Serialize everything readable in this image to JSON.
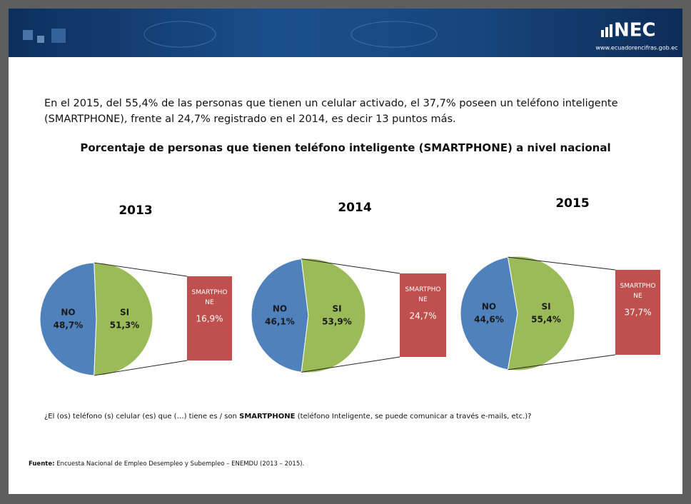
{
  "header": {
    "logo": "NEC",
    "url": "www.ecuadorencifras.gob.ec"
  },
  "intro": "En el 2015, del 55,4% de las personas que tienen un celular activado, el 37,7% poseen un teléfono inteligente (SMARTPHONE), frente al 24,7% registrado en el 2014, es decir 13 puntos más.",
  "heading": "Porcentaje de personas que tienen teléfono inteligente (SMARTPHONE) a nivel nacional",
  "chart_data": [
    {
      "type": "pie",
      "title": "2013",
      "categories": [
        "NO",
        "SI"
      ],
      "values": [
        48.7,
        51.3
      ],
      "value_labels": [
        "48,7%",
        "51,3%"
      ],
      "colors": [
        "#4f81bd",
        "#9bbb59"
      ],
      "breakout": {
        "label": "SMARTPHONE",
        "value": 16.9,
        "value_label": "16,9%",
        "color": "#c0504d"
      }
    },
    {
      "type": "pie",
      "title": "2014",
      "categories": [
        "NO",
        "SI"
      ],
      "values": [
        46.1,
        53.9
      ],
      "value_labels": [
        "46,1%",
        "53,9%"
      ],
      "colors": [
        "#4f81bd",
        "#9bbb59"
      ],
      "breakout": {
        "label": "SMARTPHONE",
        "value": 24.7,
        "value_label": "24,7%",
        "color": "#c0504d"
      }
    },
    {
      "type": "pie",
      "title": "2015",
      "categories": [
        "NO",
        "SI"
      ],
      "values": [
        44.6,
        55.4
      ],
      "value_labels": [
        "44,6%",
        "55,4%"
      ],
      "colors": [
        "#4f81bd",
        "#9bbb59"
      ],
      "breakout": {
        "label": "SMARTPHONE",
        "value": 37.7,
        "value_label": "37,7%",
        "color": "#c0504d"
      }
    }
  ],
  "note": {
    "before": "¿El (os) teléfono (s) celular (es) que (…) tiene es / son",
    "bold": "SMARTPHONE",
    "after": "(teléfono Inteligente, se puede comunicar a  través  e-mails, etc.)?"
  },
  "source": {
    "label": "Fuente:",
    "text": "Encuesta Nacional de Empleo Desempleo y Subempleo – ENEMDU (2013 – 2015)."
  }
}
